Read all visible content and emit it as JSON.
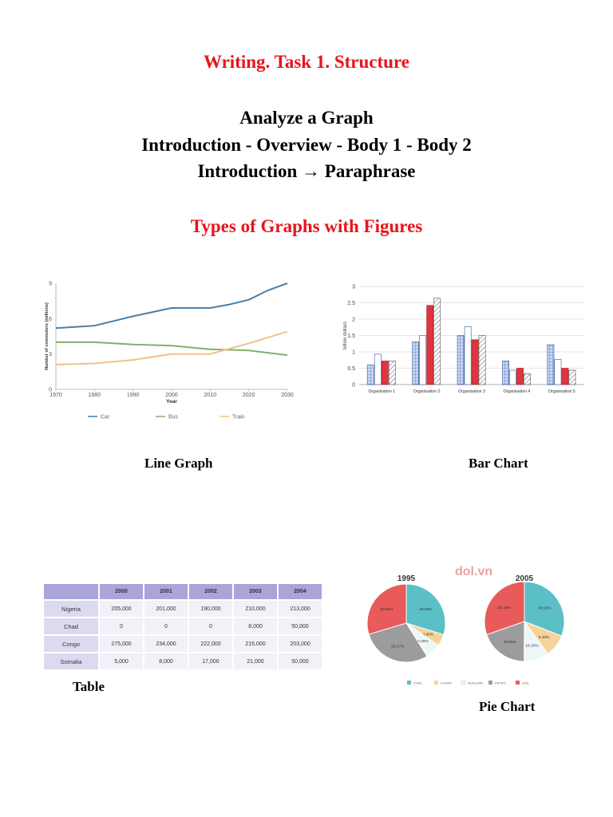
{
  "page": {
    "title": "Writing. Task 1. Structure",
    "heading_lines": [
      "Analyze a Graph",
      "Introduction - Overview - Body 1 - Body 2",
      "Introduction → Paraphrase"
    ],
    "subtitle": "Types of Graphs with Figures"
  },
  "captions": {
    "line": "Line Graph",
    "bar": "Bar Chart",
    "table": "Table",
    "pie": "Pie Chart"
  },
  "colors": {
    "title_red": "#e8141b",
    "car": "#4a7fa8",
    "bus": "#7fb26b",
    "train": "#f2c08a",
    "table_header": "#a9a5d9",
    "coal": "#5bbfc8",
    "other": "#f5d39a",
    "nuclear": "#eef7f8",
    "petro": "#9c9c9c",
    "gas": "#e95a5a",
    "bar_red": "#e0343f"
  },
  "chart_data": [
    {
      "type": "line",
      "xlabel": "Year",
      "ylabel": "Number of commuters (millions)",
      "x": [
        1970,
        1980,
        1990,
        2000,
        2010,
        2020,
        2030
      ],
      "xlim": [
        1970,
        2030
      ],
      "ylim": [
        0,
        9
      ],
      "yticks": [
        0,
        3,
        6,
        9
      ],
      "grid": false,
      "legend": "bottom",
      "series": [
        {
          "name": "Car",
          "x": [
            1970,
            1980,
            1985,
            1990,
            2000,
            2005,
            2010,
            2015,
            2020,
            2025,
            2030
          ],
          "values": [
            5.2,
            5.4,
            5.8,
            6.2,
            6.9,
            6.9,
            6.9,
            7.2,
            7.6,
            8.4,
            9.0
          ]
        },
        {
          "name": "Bus",
          "x": [
            1970,
            1980,
            1990,
            2000,
            2010,
            2020,
            2030
          ],
          "values": [
            4.0,
            4.0,
            3.8,
            3.7,
            3.4,
            3.3,
            2.9
          ]
        },
        {
          "name": "Train",
          "x": [
            1970,
            1980,
            1990,
            2000,
            2010,
            2020,
            2030
          ],
          "values": [
            2.1,
            2.2,
            2.5,
            3.0,
            3.0,
            3.9,
            4.9
          ]
        }
      ]
    },
    {
      "type": "bar",
      "ylabel": "billion dollars",
      "ylim": [
        0,
        3
      ],
      "yticks": [
        0,
        0.5,
        1,
        1.5,
        2,
        2.5,
        3
      ],
      "grid": true,
      "categories": [
        "Organisation 1",
        "Organisation 2",
        "Organisation 3",
        "Organisation 4",
        "Organisation 5"
      ],
      "series": [
        {
          "values": [
            0.6,
            1.3,
            1.5,
            0.72,
            1.22
          ]
        },
        {
          "values": [
            0.93,
            1.5,
            1.77,
            0.44,
            0.77
          ]
        },
        {
          "values": [
            0.72,
            2.42,
            1.37,
            0.5,
            0.5
          ]
        },
        {
          "values": [
            0.72,
            2.64,
            1.5,
            0.33,
            0.44
          ]
        }
      ]
    },
    {
      "type": "table",
      "columns": [
        "",
        "2000",
        "2001",
        "2002",
        "2003",
        "2004"
      ],
      "rows": [
        [
          "Nigeria",
          "205,000",
          "201,000",
          "190,000",
          "210,000",
          "213,000"
        ],
        [
          "Chad",
          "0",
          "0",
          "0",
          "8,000",
          "50,000"
        ],
        [
          "Congo",
          "275,000",
          "234,000",
          "222,000",
          "215,000",
          "203,000"
        ],
        [
          "Somalia",
          "5,000",
          "8,000",
          "17,000",
          "21,000",
          "50,000"
        ]
      ]
    },
    {
      "type": "pie",
      "watermark": "dol.vn",
      "legend": "bottom",
      "legend_labels": [
        "COAL",
        "OTHER",
        "NUCLEAR",
        "PETRO",
        "GAS"
      ],
      "pies": [
        {
          "title": "1995",
          "slices": [
            {
              "name": "COAL",
              "value": 29.8,
              "label": "29.80%"
            },
            {
              "name": "OTHER",
              "value": 4.9,
              "label": "4.90%"
            },
            {
              "name": "NUCLEAR",
              "value": 6.4,
              "label": "6.40%"
            },
            {
              "name": "PETRO",
              "value": 29.27,
              "label": "29.27%"
            },
            {
              "name": "GAS",
              "value": 29.63,
              "label": "29.63%"
            }
          ]
        },
        {
          "title": "2005",
          "slices": [
            {
              "name": "COAL",
              "value": 30.93,
              "label": "30.93%"
            },
            {
              "name": "OTHER",
              "value": 9.1,
              "label": "9.10%"
            },
            {
              "name": "NUCLEAR",
              "value": 10.1,
              "label": "10.10%"
            },
            {
              "name": "PETRO",
              "value": 19.55,
              "label": "19.55%"
            },
            {
              "name": "GAS",
              "value": 30.33,
              "label": "30.33%"
            }
          ]
        }
      ]
    }
  ]
}
